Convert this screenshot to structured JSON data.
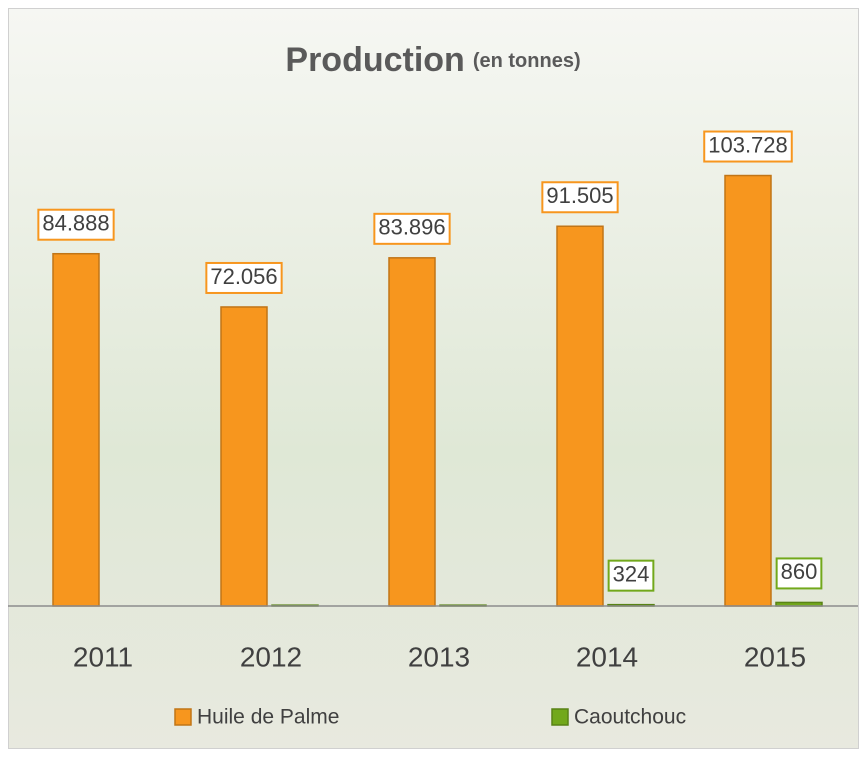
{
  "chart_data": {
    "type": "bar",
    "title": "Production",
    "subtitle": "(en tonnes)",
    "categories": [
      "2011",
      "2012",
      "2013",
      "2014",
      "2015"
    ],
    "series": [
      {
        "name": "Huile de Palme",
        "color": "#f7961e",
        "values": [
          84888,
          72056,
          83896,
          91505,
          103728
        ],
        "value_labels": [
          "84.888",
          "72.056",
          "83.896",
          "91.505",
          "103.728"
        ]
      },
      {
        "name": "Caoutchouc",
        "color": "#72a81b",
        "values": [
          null,
          200,
          200,
          324,
          860
        ],
        "value_labels": [
          null,
          null,
          null,
          "324",
          "860"
        ]
      }
    ],
    "ylim": [
      0,
      120000
    ],
    "legend": "bottom"
  }
}
